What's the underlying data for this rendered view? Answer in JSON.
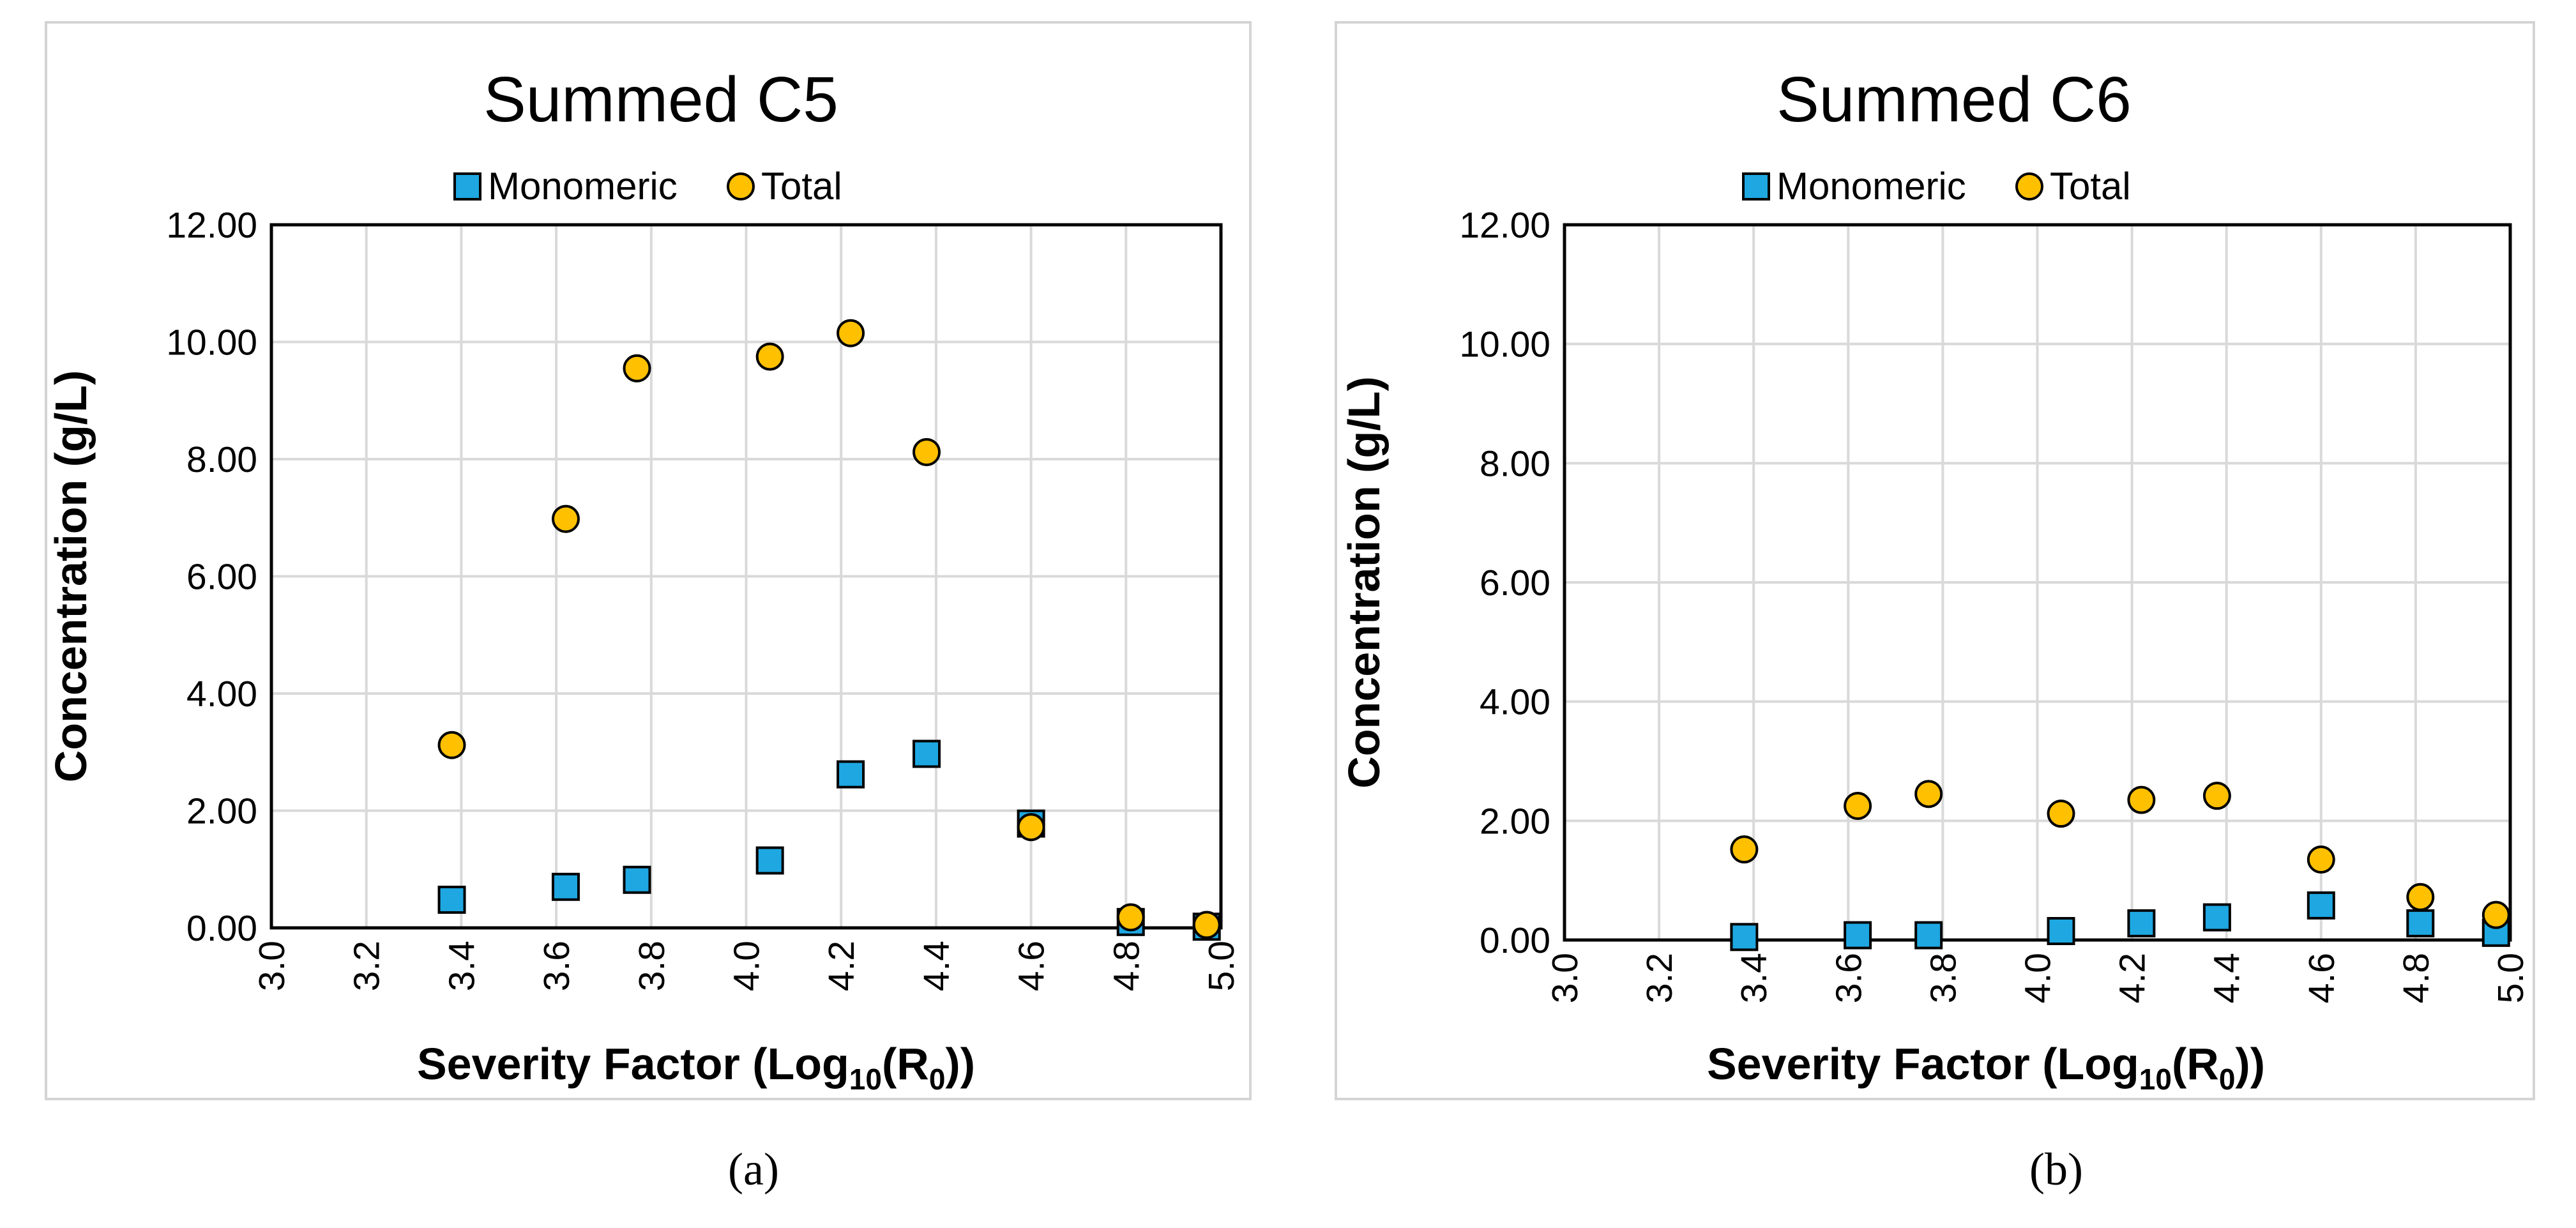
{
  "chart_data": [
    {
      "type": "scatter",
      "title": "Summed  C5",
      "xlabel": {
        "prefix": "Severity Factor (Log",
        "sub1": "10",
        "mid": "(R",
        "sub2": "0",
        "suffix": "))"
      },
      "ylabel": "Concentration (g/L)",
      "xlim": [
        3.0,
        5.0
      ],
      "ylim": [
        0,
        12
      ],
      "x_ticks": [
        "3.0",
        "3.2",
        "3.4",
        "3.6",
        "3.8",
        "4.0",
        "4.2",
        "4.4",
        "4.6",
        "4.8",
        "5.0"
      ],
      "y_ticks": [
        "0.00",
        "2.00",
        "4.00",
        "6.00",
        "8.00",
        "10.00",
        "12.00"
      ],
      "grid": true,
      "legend_position": "top",
      "series": [
        {
          "name": "Monomeric",
          "marker": "square",
          "color": "#1EA7E1",
          "x": [
            3.38,
            3.62,
            3.77,
            4.05,
            4.22,
            4.38,
            4.6,
            4.81,
            4.97
          ],
          "y": [
            0.48,
            0.7,
            0.82,
            1.15,
            2.62,
            2.97,
            1.78,
            0.1,
            0.02
          ]
        },
        {
          "name": "Total",
          "marker": "circle",
          "color": "#FFC000",
          "x": [
            3.38,
            3.62,
            3.77,
            4.05,
            4.22,
            4.38,
            4.6,
            4.81,
            4.97
          ],
          "y": [
            3.12,
            6.98,
            9.55,
            9.75,
            10.15,
            8.12,
            1.72,
            0.18,
            0.05
          ]
        }
      ]
    },
    {
      "type": "scatter",
      "title": "Summed  C6",
      "xlabel": {
        "prefix": "Severity Factor (Log",
        "sub1": "10",
        "mid": "(R",
        "sub2": "0",
        "suffix": "))"
      },
      "ylabel": "Concentration (g/L)",
      "xlim": [
        3.0,
        5.0
      ],
      "ylim": [
        0,
        12
      ],
      "x_ticks": [
        "3.0",
        "3.2",
        "3.4",
        "3.6",
        "3.8",
        "4.0",
        "4.2",
        "4.4",
        "4.6",
        "4.8",
        "5.0"
      ],
      "y_ticks": [
        "0.00",
        "2.00",
        "4.00",
        "6.00",
        "8.00",
        "10.00",
        "12.00"
      ],
      "grid": true,
      "legend_position": "top",
      "series": [
        {
          "name": "Monomeric",
          "marker": "square",
          "color": "#1EA7E1",
          "x": [
            3.38,
            3.62,
            3.77,
            4.05,
            4.22,
            4.38,
            4.6,
            4.81,
            4.97
          ],
          "y": [
            0.05,
            0.08,
            0.08,
            0.15,
            0.28,
            0.38,
            0.58,
            0.28,
            0.12
          ]
        },
        {
          "name": "Total",
          "marker": "circle",
          "color": "#FFC000",
          "x": [
            3.38,
            3.62,
            3.77,
            4.05,
            4.22,
            4.38,
            4.6,
            4.81,
            4.97
          ],
          "y": [
            1.52,
            2.25,
            2.45,
            2.12,
            2.35,
            2.42,
            1.35,
            0.72,
            0.42
          ]
        }
      ]
    }
  ],
  "captions": [
    "(a)",
    "(b)"
  ]
}
